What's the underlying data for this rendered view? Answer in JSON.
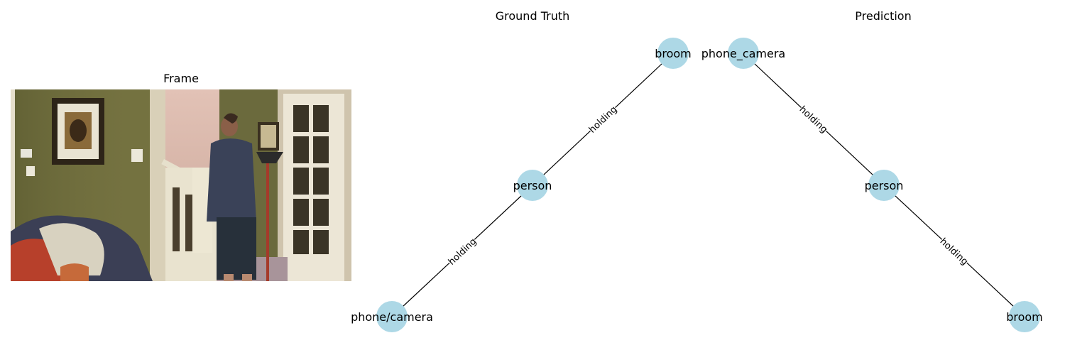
{
  "frame": {
    "title": "Frame"
  },
  "ground_truth": {
    "title": "Ground Truth",
    "nodes": {
      "top": "broom",
      "middle": "person",
      "bottom": "phone/camera"
    },
    "edges": {
      "upper": "holding",
      "lower": "holding"
    }
  },
  "prediction": {
    "title": "Prediction",
    "nodes": {
      "top": "phone_camera",
      "middle": "person",
      "bottom": "broom"
    },
    "edges": {
      "upper": "holding",
      "lower": "holding"
    }
  },
  "colors": {
    "node_fill": "#add8e6",
    "edge": "#000000"
  }
}
